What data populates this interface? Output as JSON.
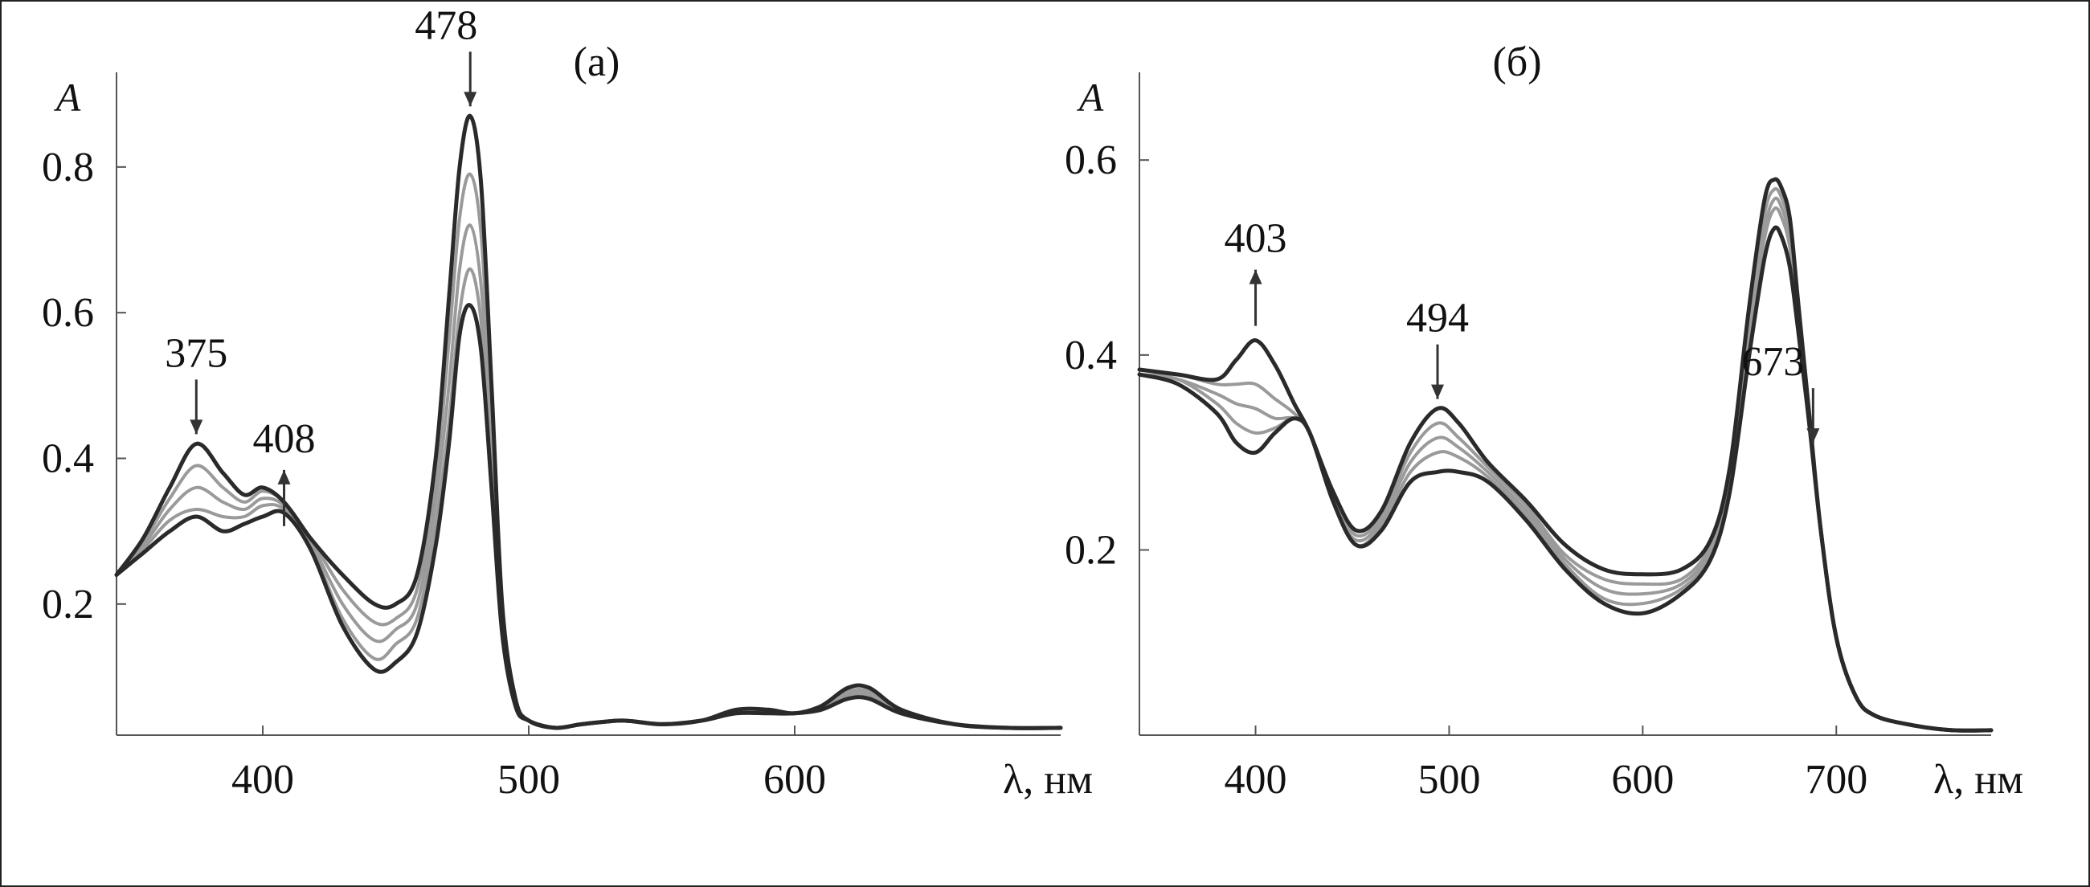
{
  "chart_data": [
    {
      "type": "line",
      "panel_label": "(а)",
      "ylabel": "A",
      "xlabel": "λ, нм",
      "xlim": [
        345,
        700
      ],
      "ylim": [
        0.02,
        0.93
      ],
      "x_ticks": [
        400,
        500,
        600
      ],
      "y_ticks": [
        0.2,
        0.4,
        0.6,
        0.8
      ],
      "grid": false,
      "annotations": [
        {
          "text": "375",
          "x": 375,
          "arrow": "down"
        },
        {
          "text": "408",
          "x": 408,
          "arrow": "up"
        },
        {
          "text": "478",
          "x": 478,
          "arrow": "down"
        }
      ],
      "x": [
        345,
        355,
        365,
        375,
        385,
        393,
        400,
        408,
        418,
        430,
        442,
        450,
        458,
        465,
        470,
        474,
        478,
        482,
        486,
        490,
        495,
        500,
        510,
        520,
        535,
        550,
        565,
        578,
        590,
        600,
        610,
        620,
        628,
        640,
        660,
        680,
        700
      ],
      "series": [
        {
          "role": "initial",
          "values": [
            0.24,
            0.29,
            0.36,
            0.42,
            0.38,
            0.35,
            0.36,
            0.34,
            0.29,
            0.24,
            0.2,
            0.2,
            0.24,
            0.4,
            0.62,
            0.8,
            0.87,
            0.78,
            0.5,
            0.2,
            0.07,
            0.04,
            0.03,
            0.035,
            0.04,
            0.035,
            0.04,
            0.055,
            0.055,
            0.05,
            0.06,
            0.085,
            0.085,
            0.055,
            0.035,
            0.03,
            0.03
          ]
        },
        {
          "role": "intermediate",
          "values": [
            0.24,
            0.285,
            0.345,
            0.39,
            0.36,
            0.34,
            0.355,
            0.34,
            0.29,
            0.22,
            0.175,
            0.18,
            0.22,
            0.37,
            0.56,
            0.73,
            0.79,
            0.71,
            0.46,
            0.19,
            0.07,
            0.04,
            0.03,
            0.035,
            0.04,
            0.035,
            0.04,
            0.055,
            0.055,
            0.05,
            0.06,
            0.08,
            0.08,
            0.055,
            0.035,
            0.03,
            0.03
          ]
        },
        {
          "role": "intermediate",
          "values": [
            0.24,
            0.28,
            0.33,
            0.36,
            0.34,
            0.33,
            0.345,
            0.335,
            0.285,
            0.2,
            0.15,
            0.165,
            0.2,
            0.34,
            0.5,
            0.66,
            0.72,
            0.64,
            0.42,
            0.18,
            0.065,
            0.04,
            0.03,
            0.035,
            0.04,
            0.035,
            0.04,
            0.055,
            0.055,
            0.05,
            0.06,
            0.078,
            0.078,
            0.055,
            0.035,
            0.03,
            0.03
          ]
        },
        {
          "role": "intermediate",
          "values": [
            0.24,
            0.275,
            0.315,
            0.33,
            0.32,
            0.32,
            0.335,
            0.33,
            0.28,
            0.18,
            0.125,
            0.145,
            0.18,
            0.31,
            0.45,
            0.6,
            0.66,
            0.59,
            0.39,
            0.17,
            0.065,
            0.04,
            0.03,
            0.035,
            0.04,
            0.035,
            0.04,
            0.055,
            0.055,
            0.05,
            0.06,
            0.075,
            0.075,
            0.055,
            0.035,
            0.03,
            0.03
          ]
        },
        {
          "role": "final",
          "values": [
            0.24,
            0.27,
            0.3,
            0.32,
            0.3,
            0.31,
            0.32,
            0.325,
            0.275,
            0.17,
            0.11,
            0.12,
            0.16,
            0.28,
            0.42,
            0.57,
            0.61,
            0.55,
            0.36,
            0.16,
            0.06,
            0.04,
            0.03,
            0.035,
            0.04,
            0.035,
            0.04,
            0.05,
            0.05,
            0.05,
            0.055,
            0.07,
            0.07,
            0.05,
            0.035,
            0.03,
            0.03
          ]
        }
      ]
    },
    {
      "type": "line",
      "panel_label": "(б)",
      "ylabel": "A",
      "xlabel": "λ, нм",
      "xlim": [
        340,
        780
      ],
      "ylim": [
        0.01,
        0.69
      ],
      "x_ticks": [
        400,
        500,
        600,
        700
      ],
      "y_ticks": [
        0.2,
        0.4,
        0.6
      ],
      "grid": false,
      "annotations": [
        {
          "text": "403",
          "x": 400,
          "arrow": "up"
        },
        {
          "text": "494",
          "x": 494,
          "arrow": "down"
        },
        {
          "text": "673",
          "x": 688,
          "arrow": "down"
        }
      ],
      "x": [
        340,
        360,
        380,
        390,
        400,
        410,
        420,
        428,
        440,
        452,
        465,
        480,
        494,
        505,
        520,
        540,
        560,
        580,
        600,
        620,
        635,
        645,
        655,
        663,
        668,
        672,
        676,
        680,
        686,
        692,
        700,
        710,
        720,
        740,
        760,
        780
      ],
      "series": [
        {
          "role": "initial",
          "values": [
            0.38,
            0.37,
            0.34,
            0.31,
            0.3,
            0.32,
            0.335,
            0.32,
            0.25,
            0.205,
            0.22,
            0.27,
            0.28,
            0.28,
            0.27,
            0.23,
            0.18,
            0.145,
            0.135,
            0.155,
            0.19,
            0.26,
            0.4,
            0.5,
            0.53,
            0.52,
            0.49,
            0.43,
            0.33,
            0.22,
            0.11,
            0.05,
            0.03,
            0.02,
            0.015,
            0.015
          ]
        },
        {
          "role": "intermediate",
          "values": [
            0.38,
            0.375,
            0.35,
            0.33,
            0.32,
            0.325,
            0.335,
            0.32,
            0.25,
            0.205,
            0.225,
            0.28,
            0.3,
            0.295,
            0.275,
            0.235,
            0.185,
            0.15,
            0.145,
            0.16,
            0.195,
            0.27,
            0.42,
            0.52,
            0.55,
            0.54,
            0.51,
            0.44,
            0.33,
            0.22,
            0.11,
            0.05,
            0.03,
            0.02,
            0.015,
            0.015
          ]
        },
        {
          "role": "intermediate",
          "values": [
            0.38,
            0.375,
            0.36,
            0.35,
            0.345,
            0.335,
            0.335,
            0.32,
            0.25,
            0.21,
            0.23,
            0.29,
            0.315,
            0.305,
            0.28,
            0.24,
            0.19,
            0.16,
            0.155,
            0.165,
            0.2,
            0.275,
            0.43,
            0.53,
            0.56,
            0.55,
            0.52,
            0.45,
            0.34,
            0.22,
            0.11,
            0.05,
            0.03,
            0.02,
            0.015,
            0.015
          ]
        },
        {
          "role": "intermediate",
          "values": [
            0.385,
            0.38,
            0.37,
            0.37,
            0.37,
            0.355,
            0.34,
            0.32,
            0.255,
            0.215,
            0.235,
            0.3,
            0.33,
            0.315,
            0.285,
            0.245,
            0.195,
            0.17,
            0.165,
            0.17,
            0.205,
            0.28,
            0.44,
            0.545,
            0.57,
            0.56,
            0.53,
            0.46,
            0.34,
            0.22,
            0.11,
            0.05,
            0.03,
            0.02,
            0.015,
            0.015
          ]
        },
        {
          "role": "final",
          "values": [
            0.385,
            0.38,
            0.375,
            0.395,
            0.415,
            0.39,
            0.35,
            0.32,
            0.26,
            0.22,
            0.24,
            0.31,
            0.345,
            0.33,
            0.29,
            0.25,
            0.205,
            0.18,
            0.175,
            0.18,
            0.21,
            0.285,
            0.45,
            0.56,
            0.58,
            0.57,
            0.54,
            0.46,
            0.34,
            0.22,
            0.11,
            0.05,
            0.03,
            0.02,
            0.015,
            0.015
          ]
        }
      ]
    }
  ]
}
